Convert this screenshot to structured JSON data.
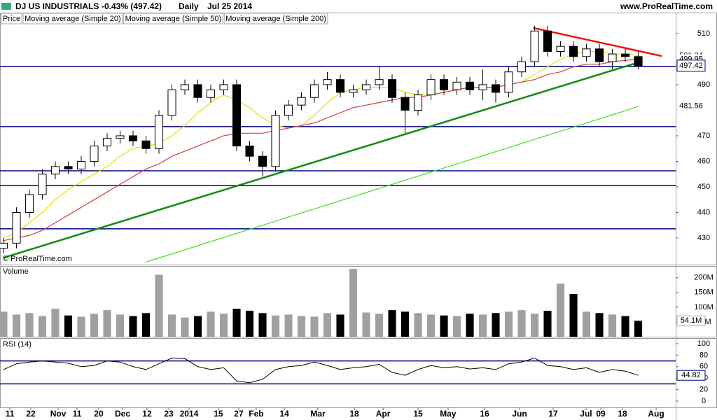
{
  "header": {
    "title": "DJ US INDUSTRIALS",
    "change": "-0.43% (497.42)",
    "period": "Daily",
    "date": "Jul 25 2014",
    "site": "www.ProRealTime.com"
  },
  "chart_data": [
    {
      "type": "candlestick",
      "label": "Price",
      "watermark": "© ProRealTime.com",
      "open": [
        426,
        428,
        440,
        447,
        455,
        458,
        457,
        460,
        466,
        469,
        470,
        468,
        465,
        478,
        488,
        490,
        485,
        488,
        490,
        466,
        462,
        458,
        478,
        482,
        485,
        490,
        492,
        487,
        488,
        490,
        492,
        485,
        480,
        486,
        492,
        488,
        491,
        488,
        490,
        487,
        495,
        499,
        511,
        503,
        505,
        501,
        504,
        499,
        502,
        501
      ],
      "high": [
        430,
        442,
        449,
        457,
        460,
        460,
        462,
        468,
        471,
        472,
        472,
        470,
        480,
        490,
        492,
        492,
        490,
        492,
        492,
        468,
        464,
        480,
        484,
        487,
        492,
        495,
        494,
        490,
        492,
        497,
        494,
        487,
        488,
        494,
        494,
        493,
        493,
        496,
        492,
        497,
        501,
        513,
        513,
        507,
        507,
        506,
        506,
        504,
        504,
        503
      ],
      "low": [
        424,
        426,
        438,
        445,
        453,
        455,
        455,
        458,
        464,
        467,
        466,
        463,
        463,
        476,
        486,
        483,
        483,
        486,
        464,
        460,
        454,
        456,
        476,
        480,
        483,
        488,
        485,
        485,
        486,
        488,
        483,
        471,
        478,
        484,
        486,
        486,
        486,
        484,
        483,
        485,
        493,
        497,
        501,
        501,
        499,
        499,
        497,
        496,
        499,
        496
      ],
      "close": [
        428,
        440,
        447,
        455,
        458,
        457,
        460,
        466,
        469,
        470,
        468,
        465,
        478,
        488,
        490,
        485,
        488,
        490,
        466,
        462,
        458,
        478,
        482,
        485,
        490,
        492,
        487,
        488,
        490,
        492,
        485,
        480,
        486,
        492,
        488,
        491,
        488,
        490,
        487,
        495,
        499,
        511,
        503,
        505,
        501,
        504,
        499,
        502,
        501,
        497.42
      ],
      "up_color": "#ffffff",
      "down_color": "#000000",
      "series": [
        {
          "name": "Moving average (Simple 20)",
          "color": "#e8e000",
          "values": [
            430,
            432,
            436,
            440,
            445,
            449,
            452,
            455,
            458,
            462,
            465,
            466,
            467,
            470,
            474,
            479,
            483,
            486,
            484,
            481,
            477,
            474,
            473,
            474,
            478,
            483,
            487,
            488,
            489,
            489,
            489,
            487,
            486,
            486,
            487,
            488,
            489,
            489,
            489,
            490,
            491,
            494,
            497,
            500,
            502,
            503,
            503,
            502,
            502,
            501.34
          ]
        },
        {
          "name": "Moving average (Simple 50)",
          "color": "#d04040",
          "values": [
            429,
            430,
            431,
            433,
            436,
            439,
            442,
            445,
            448,
            451,
            454,
            457,
            459,
            462,
            464,
            466,
            468,
            470,
            471,
            471,
            471,
            472,
            473,
            474,
            475,
            477,
            479,
            481,
            482,
            483,
            484,
            485,
            485,
            486,
            487,
            488,
            489,
            489,
            489,
            490,
            491,
            492,
            494,
            495,
            497,
            498,
            498,
            499,
            499.5,
            499.95
          ]
        },
        {
          "name": "Moving average (Simple 200)",
          "color": "#44dd22",
          "values": [
            null,
            null,
            null,
            null,
            null,
            null,
            null,
            null,
            null,
            null,
            null,
            420.6,
            422.2,
            423.8,
            425.4,
            427,
            428.6,
            430.2,
            431.8,
            433.4,
            435,
            436.6,
            438.2,
            439.8,
            441.4,
            443,
            444.6,
            446.2,
            447.8,
            449.4,
            451,
            452.6,
            454.2,
            455.8,
            457.4,
            459,
            460.6,
            462.2,
            463.8,
            465.4,
            467,
            468.6,
            470.2,
            471.8,
            473.4,
            475,
            476.6,
            478.2,
            479.8,
            481.56
          ]
        }
      ],
      "hlines": {
        "color": "#000080",
        "values": [
          497.1,
          473.6,
          456.3,
          450.5,
          433.6
        ]
      },
      "trendlines": [
        {
          "color": "#ee1111",
          "x": [
            40.9,
            50.81
          ],
          "y": [
            512.2,
            501.2
          ]
        },
        {
          "color": "#138a13",
          "x": [
            0,
            49.2
          ],
          "y": [
            422.3,
            499
          ]
        }
      ],
      "xlim": [
        -0.27,
        51.89
      ],
      "ylim": [
        419.6,
        518.2
      ],
      "yticks": [
        430,
        440,
        450,
        460,
        470,
        490,
        510
      ],
      "xticks": [
        {
          "value": 0.49,
          "label": "11"
        },
        {
          "value": 2.11,
          "label": "22"
        },
        {
          "value": 4.22,
          "label": "Nov"
        },
        {
          "value": 5.68,
          "label": "11"
        },
        {
          "value": 7.35,
          "label": "20"
        },
        {
          "value": 9.19,
          "label": "Dec"
        },
        {
          "value": 11.08,
          "label": "12"
        },
        {
          "value": 12.76,
          "label": "23"
        },
        {
          "value": 14.32,
          "label": "2014"
        },
        {
          "value": 16.59,
          "label": "15"
        },
        {
          "value": 18.16,
          "label": "27"
        },
        {
          "value": 19.51,
          "label": "Feb"
        },
        {
          "value": 21.68,
          "label": "14"
        },
        {
          "value": 24.27,
          "label": "Mar"
        },
        {
          "value": 27.08,
          "label": "18"
        },
        {
          "value": 29.3,
          "label": "Apr"
        },
        {
          "value": 32,
          "label": "15"
        },
        {
          "value": 34.32,
          "label": "May"
        },
        {
          "value": 37.14,
          "label": "16"
        },
        {
          "value": 39.84,
          "label": "Jun"
        },
        {
          "value": 42.43,
          "label": "17"
        },
        {
          "value": 44.97,
          "label": "Jul"
        },
        {
          "value": 46.11,
          "label": "09"
        },
        {
          "value": 47.78,
          "label": "18"
        },
        {
          "value": 50.38,
          "label": "Aug"
        }
      ]
    },
    {
      "type": "bar",
      "label": "Volume",
      "values": [
        85,
        75,
        80,
        70,
        95,
        72,
        68,
        78,
        90,
        75,
        70,
        80,
        210,
        75,
        65,
        70,
        85,
        78,
        95,
        88,
        80,
        72,
        75,
        70,
        68,
        80,
        75,
        230,
        82,
        78,
        90,
        85,
        80,
        75,
        72,
        70,
        78,
        75,
        80,
        85,
        90,
        78,
        88,
        180,
        145,
        85,
        80,
        75,
        70,
        54.1
      ],
      "last_value_label": "54.1M",
      "up_color": "#a0a0a0",
      "down_color": "#000000",
      "ylim": [
        0,
        235
      ],
      "yticks": [
        {
          "value": 50,
          "label": "50M"
        },
        {
          "value": 100,
          "label": "100M"
        },
        {
          "value": 150,
          "label": "150M"
        },
        {
          "value": 200,
          "label": "200M"
        }
      ]
    },
    {
      "type": "line",
      "label": "RSI (14)",
      "color": "#000000",
      "values": [
        55,
        65,
        68,
        70,
        68,
        66,
        60,
        62,
        70,
        68,
        60,
        55,
        65,
        75,
        74,
        60,
        55,
        58,
        35,
        32,
        38,
        55,
        60,
        62,
        68,
        62,
        55,
        58,
        60,
        64,
        50,
        45,
        55,
        62,
        58,
        60,
        56,
        58,
        55,
        65,
        68,
        75,
        62,
        60,
        55,
        58,
        50,
        55,
        52,
        44.82
      ],
      "hlines": {
        "color": "#000080",
        "values": [
          70,
          30
        ]
      },
      "ylim": [
        -11,
        108.5
      ],
      "yticks": [
        0,
        20,
        40,
        60,
        80,
        100
      ]
    }
  ]
}
